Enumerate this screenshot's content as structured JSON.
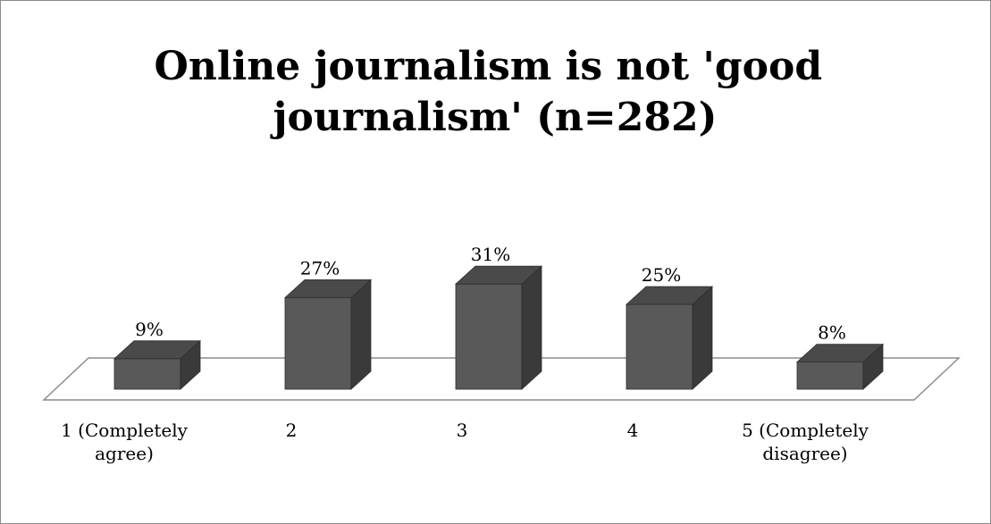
{
  "chart_data": {
    "type": "bar",
    "title": "Online journalism is not 'good journalism' (n=282)",
    "title_lines": [
      "Online journalism is not 'good",
      "journalism' (n=282)"
    ],
    "categories": [
      "1 (Completely agree)",
      "2",
      "3",
      "4",
      "5 (Completely disagree)"
    ],
    "category_lines": [
      [
        "1 (Completely",
        "agree)"
      ],
      [
        "2"
      ],
      [
        "3"
      ],
      [
        "4"
      ],
      [
        "5 (Completely",
        "disagree)"
      ]
    ],
    "values": [
      9,
      27,
      31,
      25,
      8
    ],
    "data_labels": [
      "9%",
      "27%",
      "31%",
      "25%",
      "8%"
    ],
    "value_unit": "%",
    "ylim": [
      0,
      35
    ],
    "legend": "none",
    "grid": false,
    "style": "3d-column"
  },
  "colors": {
    "bar_front": "#595959",
    "bar_side": "#3a3a3a",
    "bar_top": "#4a4a4a",
    "floor_stroke": "#8c8c8c",
    "frame": "#8c8c8c"
  }
}
